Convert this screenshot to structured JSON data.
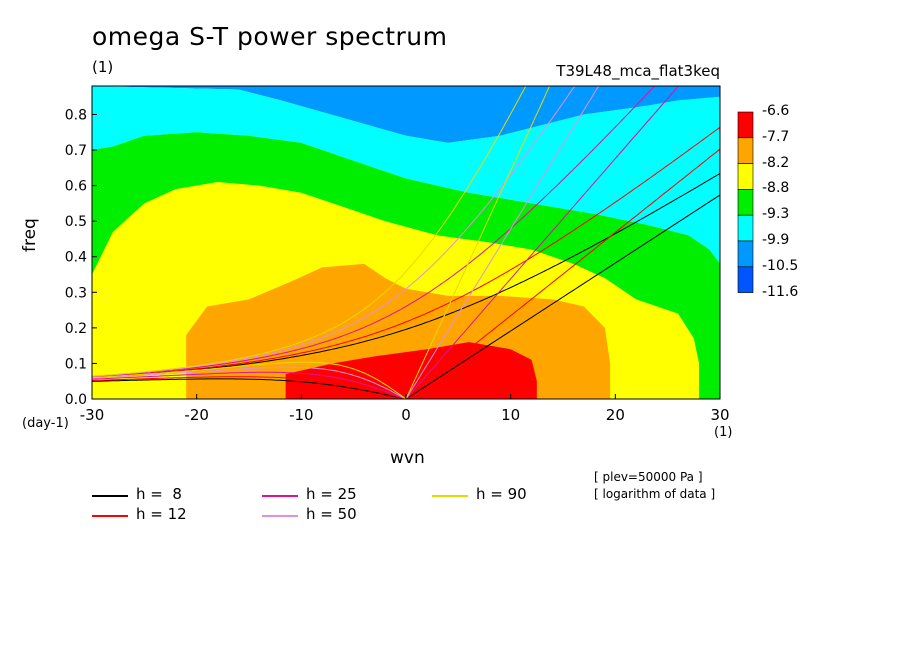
{
  "title": "omega S-T power spectrum",
  "subtitle": "(1)",
  "run_id": "T39L48_mca_flat3keq",
  "notes": [
    "[ plev=50000 Pa ]",
    "[ logarithm of data ]"
  ],
  "x_unit_left": "(day-1)",
  "x_unit_right": "(1)",
  "legend": [
    {
      "label": "h =  8",
      "color": "#000000"
    },
    {
      "label": "h = 12",
      "color": "#ff0000"
    },
    {
      "label": "h = 25",
      "color": "#e0109a"
    },
    {
      "label": "h = 50",
      "color": "#e090e0"
    },
    {
      "label": "h = 90",
      "color": "#e8d800"
    }
  ],
  "colorbar": {
    "labels": [
      "-6.6",
      "-7.7",
      "-8.2",
      "-8.8",
      "-9.3",
      "-9.9",
      "-10.5",
      "-11.6"
    ],
    "colors": [
      "#ff0000",
      "#ffa500",
      "#ffff00",
      "#00ee00",
      "#00ffff",
      "#0099ff",
      "#0055ff"
    ]
  },
  "chart_data": {
    "type": "heatmap",
    "title": "omega S-T power spectrum",
    "xlabel": "wvn",
    "ylabel": "freq",
    "xlim": [
      -30,
      30
    ],
    "ylim": [
      0,
      0.88
    ],
    "xticks": [
      -30,
      -20,
      -10,
      0,
      10,
      20,
      30
    ],
    "yticks": [
      0.0,
      0.1,
      0.2,
      0.3,
      0.4,
      0.5,
      0.6,
      0.7,
      0.8
    ],
    "contour_levels": [
      -6.6,
      -7.7,
      -8.2,
      -8.8,
      -9.3,
      -9.9,
      -10.5,
      -11.6
    ],
    "regions": [
      {
        "level": "-10.5 to -11.6",
        "color": "#0055ff",
        "points": [
          [
            21,
            0.88
          ],
          [
            30,
            0.88
          ],
          [
            30,
            0.73
          ],
          [
            27,
            0.78
          ],
          [
            23,
            0.82
          ]
        ]
      },
      {
        "level": "-9.9 to -10.5",
        "color": "#0099ff",
        "points": [
          [
            -30,
            0.88
          ],
          [
            30,
            0.88
          ],
          [
            30,
            0.85
          ],
          [
            26,
            0.84
          ],
          [
            22,
            0.82
          ],
          [
            17,
            0.8
          ],
          [
            13,
            0.77
          ],
          [
            9,
            0.74
          ],
          [
            4,
            0.72
          ],
          [
            0,
            0.74
          ],
          [
            -6,
            0.79
          ],
          [
            -12,
            0.84
          ],
          [
            -16,
            0.87
          ]
        ]
      },
      {
        "level": "-9.3 to -9.9",
        "color": "#00ffff",
        "points": [
          [
            -30,
            0.88
          ],
          [
            -16,
            0.87
          ],
          [
            -12,
            0.84
          ],
          [
            -6,
            0.79
          ],
          [
            0,
            0.74
          ],
          [
            4,
            0.72
          ],
          [
            9,
            0.74
          ],
          [
            13,
            0.77
          ],
          [
            17,
            0.8
          ],
          [
            22,
            0.82
          ],
          [
            26,
            0.84
          ],
          [
            30,
            0.85
          ],
          [
            30,
            0.38
          ],
          [
            29,
            0.42
          ],
          [
            27,
            0.46
          ],
          [
            23,
            0.49
          ],
          [
            18,
            0.52
          ],
          [
            12,
            0.55
          ],
          [
            6,
            0.58
          ],
          [
            0,
            0.62
          ],
          [
            -5,
            0.67
          ],
          [
            -10,
            0.72
          ],
          [
            -15,
            0.74
          ],
          [
            -20,
            0.75
          ],
          [
            -25,
            0.74
          ],
          [
            -28,
            0.71
          ],
          [
            -30,
            0.7
          ]
        ]
      },
      {
        "level": "-8.8 to -9.3",
        "color": "#00ee00",
        "points": [
          [
            -30,
            0.7
          ],
          [
            -28,
            0.71
          ],
          [
            -25,
            0.74
          ],
          [
            -20,
            0.75
          ],
          [
            -15,
            0.74
          ],
          [
            -10,
            0.72
          ],
          [
            -5,
            0.67
          ],
          [
            0,
            0.62
          ],
          [
            6,
            0.58
          ],
          [
            12,
            0.55
          ],
          [
            18,
            0.52
          ],
          [
            23,
            0.49
          ],
          [
            27,
            0.46
          ],
          [
            29,
            0.42
          ],
          [
            30,
            0.38
          ],
          [
            30,
            0
          ],
          [
            -30,
            0
          ]
        ]
      },
      {
        "level": "-8.2 to -8.8",
        "color": "#ffff00",
        "points": [
          [
            -30,
            0.35
          ],
          [
            -28,
            0.47
          ],
          [
            -25,
            0.55
          ],
          [
            -22,
            0.59
          ],
          [
            -18,
            0.61
          ],
          [
            -14,
            0.6
          ],
          [
            -10,
            0.58
          ],
          [
            -6,
            0.54
          ],
          [
            -2,
            0.5
          ],
          [
            3,
            0.46
          ],
          [
            8,
            0.44
          ],
          [
            12,
            0.42
          ],
          [
            16,
            0.38
          ],
          [
            19,
            0.34
          ],
          [
            22,
            0.28
          ],
          [
            26,
            0.24
          ],
          [
            27.5,
            0.17
          ],
          [
            28,
            0.1
          ],
          [
            28,
            0
          ],
          [
            -30,
            0
          ]
        ]
      },
      {
        "level": "-7.7 to -8.2",
        "color": "#ffa500",
        "points": [
          [
            -21,
            0.0
          ],
          [
            -21,
            0.1
          ],
          [
            -21,
            0.18
          ],
          [
            -19,
            0.26
          ],
          [
            -15,
            0.28
          ],
          [
            -11,
            0.33
          ],
          [
            -8,
            0.37
          ],
          [
            -4,
            0.38
          ],
          [
            -2,
            0.34
          ],
          [
            0,
            0.31
          ],
          [
            4,
            0.29
          ],
          [
            9,
            0.29
          ],
          [
            14,
            0.28
          ],
          [
            17,
            0.26
          ],
          [
            19,
            0.2
          ],
          [
            19.5,
            0.1
          ],
          [
            19.5,
            0
          ]
        ]
      },
      {
        "level": "-6.6 to -7.7",
        "color": "#ff0000",
        "points": [
          [
            -11.5,
            0
          ],
          [
            -11.5,
            0.07
          ],
          [
            -7,
            0.1
          ],
          [
            -3,
            0.12
          ],
          [
            2,
            0.14
          ],
          [
            6,
            0.16
          ],
          [
            10,
            0.14
          ],
          [
            12,
            0.11
          ],
          [
            12.5,
            0.05
          ],
          [
            12.5,
            0
          ]
        ]
      }
    ],
    "dispersion_curves": [
      {
        "h": 8,
        "color": "#000000"
      },
      {
        "h": 12,
        "color": "#ff0000"
      },
      {
        "h": 25,
        "color": "#e0109a"
      },
      {
        "h": 50,
        "color": "#e090e0"
      },
      {
        "h": 90,
        "color": "#e8d800"
      }
    ]
  }
}
